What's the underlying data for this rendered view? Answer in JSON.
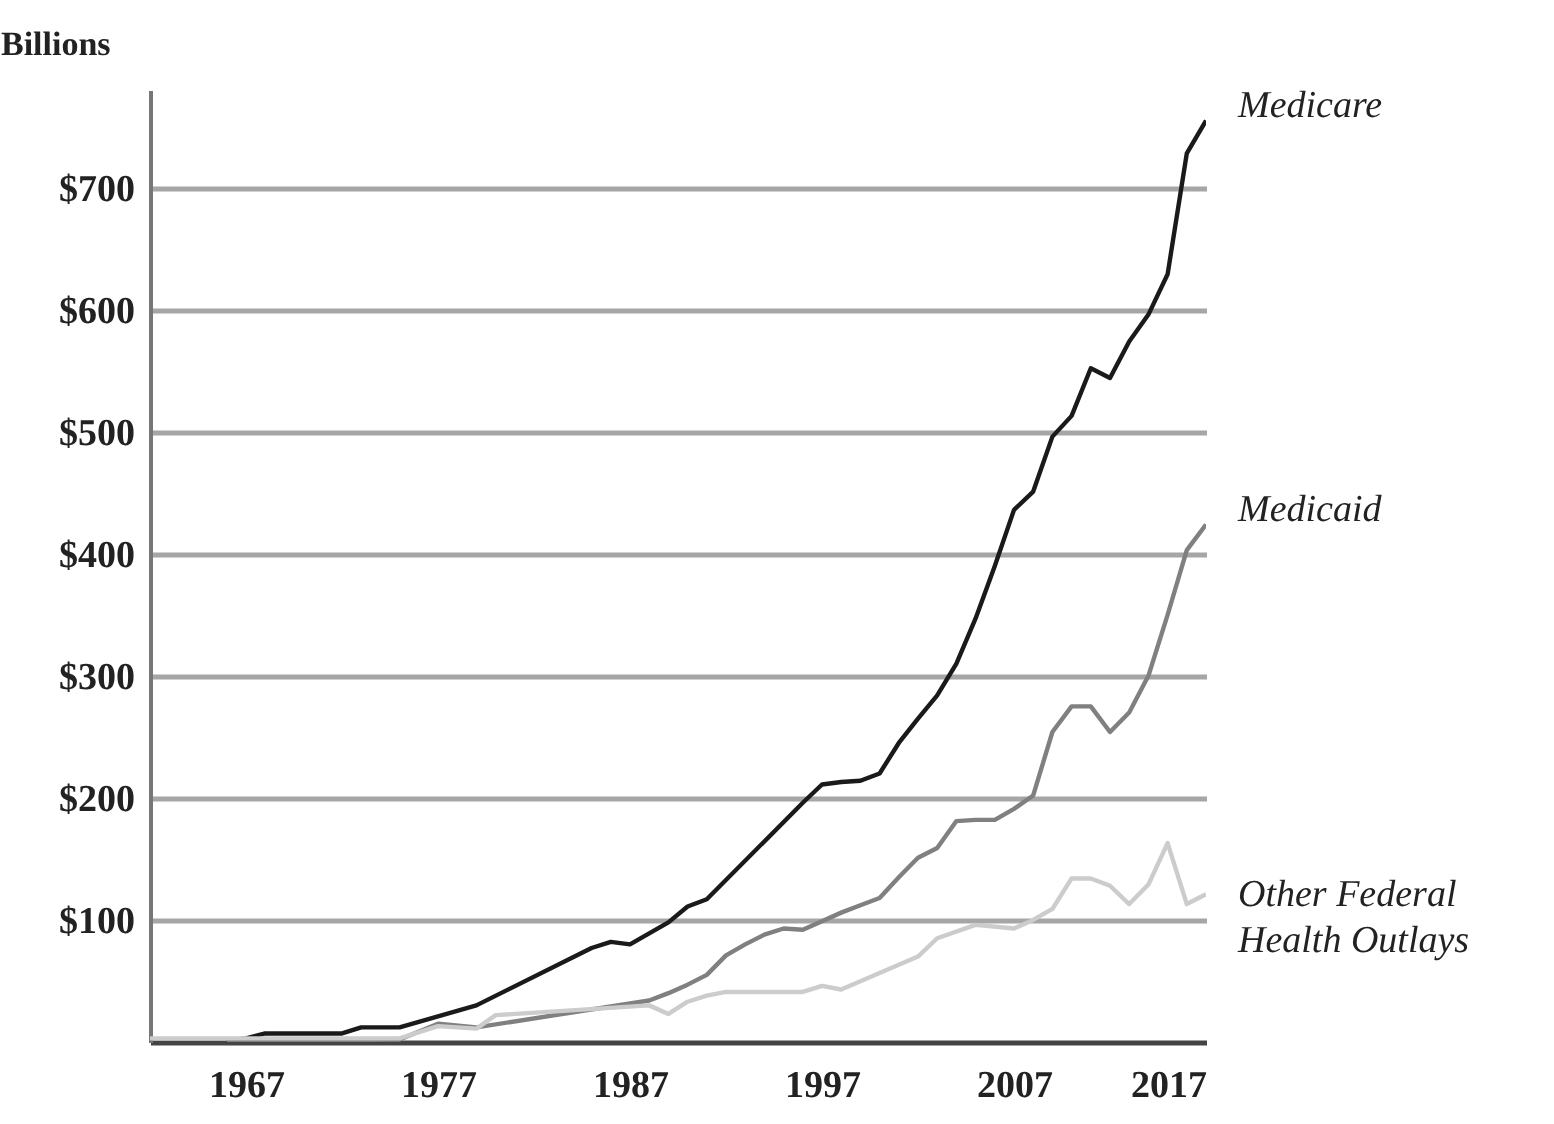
{
  "chart_data": {
    "type": "line",
    "ylabel": "Billions",
    "xlim": [
      1962,
      2017
    ],
    "xticks": [
      1967,
      1977,
      1987,
      1997,
      2007,
      2017
    ],
    "ylim": [
      0,
      780
    ],
    "yticks": [
      {
        "value": 100,
        "label": "$100"
      },
      {
        "value": 200,
        "label": "$200"
      },
      {
        "value": 300,
        "label": "$300"
      },
      {
        "value": 400,
        "label": "$400"
      },
      {
        "value": 500,
        "label": "$500"
      },
      {
        "value": 600,
        "label": "$600"
      },
      {
        "value": 700,
        "label": "$700"
      }
    ],
    "grid": "y",
    "marker": "none",
    "line_style": "solid",
    "series": [
      {
        "name": "Medicare",
        "color": "#1a1a1a",
        "x": [
          1966,
          1967,
          1968,
          1972,
          1973,
          1975,
          1979,
          1985,
          1986,
          1987,
          1989,
          1990,
          1991,
          1996,
          1997,
          1998,
          1999,
          2000,
          2001,
          2002,
          2003,
          2004,
          2005,
          2006,
          2007,
          2008,
          2009,
          2010,
          2011,
          2012,
          2013,
          2014,
          2015,
          2016,
          2017
        ],
        "values": [
          1,
          3,
          7,
          7,
          12,
          12,
          30,
          77,
          82,
          80,
          98,
          111,
          117,
          196,
          211,
          213,
          214,
          220,
          245,
          265,
          284,
          310,
          347,
          390,
          436,
          451,
          496,
          513,
          552,
          544,
          574,
          596,
          629,
          728,
          755
        ]
      },
      {
        "name": "Medicaid",
        "color": "#808080",
        "x": [
          1966,
          1975,
          1977,
          1979,
          1988,
          1989,
          1990,
          1991,
          1992,
          1993,
          1994,
          1995,
          1996,
          1997,
          1998,
          1999,
          2000,
          2001,
          2002,
          2003,
          2004,
          2005,
          2006,
          2007,
          2008,
          2009,
          2010,
          2011,
          2012,
          2013,
          2014,
          2015,
          2016,
          2017
        ],
        "values": [
          1,
          2,
          15,
          12,
          34,
          40,
          47,
          55,
          71,
          80,
          88,
          93,
          92,
          99,
          106,
          112,
          118,
          135,
          151,
          159,
          181,
          182,
          182,
          191,
          202,
          254,
          275,
          275,
          254,
          270,
          300,
          350,
          403,
          424
        ]
      },
      {
        "name": "Other Federal Health Outlays",
        "color": "#cccccc",
        "x": [
          1962,
          1975,
          1977,
          1979,
          1980,
          1988,
          1989,
          1990,
          1991,
          1992,
          1996,
          1997,
          1998,
          2002,
          2003,
          2005,
          2007,
          2008,
          2009,
          2010,
          2011,
          2012,
          2013,
          2014,
          2015,
          2016,
          2017
        ],
        "values": [
          3,
          3,
          13,
          11,
          22,
          30,
          23,
          33,
          38,
          41,
          41,
          46,
          43,
          70,
          85,
          96,
          93,
          100,
          109,
          134,
          134,
          128,
          113,
          129,
          163,
          113,
          121
        ]
      }
    ]
  }
}
